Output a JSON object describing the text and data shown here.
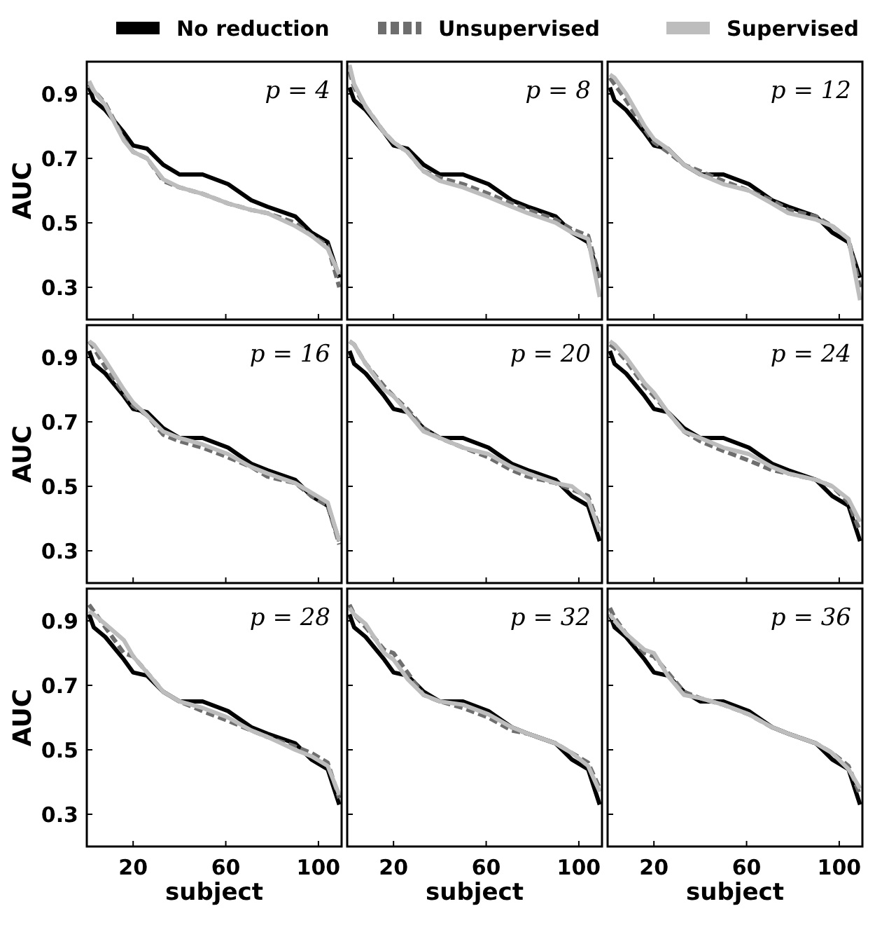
{
  "chart_data": [
    {
      "type": "line",
      "title": "p = 4",
      "ylabel": "AUC",
      "x": [
        1,
        3,
        8,
        16,
        20,
        26,
        33,
        40,
        50,
        61,
        71,
        78,
        90,
        97,
        104,
        109
      ],
      "xlim": [
        0,
        110
      ],
      "ylim": [
        0.2,
        1.0
      ],
      "xticks": [
        20,
        60,
        100
      ],
      "yticks": [
        0.3,
        0.5,
        0.7,
        0.9
      ],
      "tick_labels": "y",
      "legend": "top",
      "series": [
        {
          "name": "No reduction",
          "color": "#000000",
          "line_style": "solid",
          "values": [
            0.92,
            0.88,
            0.85,
            0.78,
            0.74,
            0.73,
            0.68,
            0.65,
            0.65,
            0.62,
            0.57,
            0.55,
            0.52,
            0.47,
            0.44,
            0.33
          ]
        },
        {
          "name": "Unsupervised",
          "color": "#6e6e6e",
          "line_style": "dashed",
          "values": [
            0.93,
            0.91,
            0.87,
            0.76,
            0.72,
            0.7,
            0.63,
            0.61,
            0.59,
            0.56,
            0.54,
            0.53,
            0.5,
            0.46,
            0.43,
            0.3
          ]
        },
        {
          "name": "Supervised",
          "color": "#bdbdbd",
          "line_style": "solid",
          "values": [
            0.94,
            0.91,
            0.865,
            0.755,
            0.72,
            0.7,
            0.635,
            0.61,
            0.59,
            0.56,
            0.54,
            0.53,
            0.49,
            0.46,
            0.42,
            0.34
          ]
        }
      ]
    },
    {
      "type": "line",
      "title": "p = 8",
      "x": [
        1,
        3,
        8,
        16,
        20,
        26,
        33,
        40,
        50,
        61,
        71,
        78,
        90,
        97,
        104,
        109
      ],
      "xlim": [
        0,
        110
      ],
      "ylim": [
        0.2,
        1.0
      ],
      "xticks": [
        20,
        60,
        100
      ],
      "yticks": [
        0.3,
        0.5,
        0.7,
        0.9
      ],
      "tick_labels": false,
      "series": [
        {
          "color": "#000000",
          "line_style": "solid",
          "values": [
            0.92,
            0.88,
            0.85,
            0.78,
            0.74,
            0.73,
            0.68,
            0.65,
            0.65,
            0.62,
            0.57,
            0.55,
            0.52,
            0.47,
            0.44,
            0.33
          ]
        },
        {
          "color": "#6e6e6e",
          "line_style": "dashed",
          "values": [
            0.97,
            0.92,
            0.86,
            0.78,
            0.75,
            0.72,
            0.66,
            0.64,
            0.62,
            0.59,
            0.56,
            0.54,
            0.51,
            0.48,
            0.46,
            0.33
          ]
        },
        {
          "color": "#bdbdbd",
          "line_style": "solid",
          "values": [
            0.99,
            0.93,
            0.86,
            0.78,
            0.75,
            0.72,
            0.66,
            0.63,
            0.61,
            0.58,
            0.55,
            0.53,
            0.5,
            0.47,
            0.45,
            0.27
          ]
        }
      ]
    },
    {
      "type": "line",
      "title": "p = 12",
      "x": [
        1,
        3,
        8,
        16,
        20,
        26,
        33,
        40,
        50,
        61,
        71,
        78,
        90,
        97,
        104,
        109
      ],
      "xlim": [
        0,
        110
      ],
      "ylim": [
        0.2,
        1.0
      ],
      "xticks": [
        20,
        60,
        100
      ],
      "yticks": [
        0.3,
        0.5,
        0.7,
        0.9
      ],
      "tick_labels": false,
      "series": [
        {
          "color": "#000000",
          "line_style": "solid",
          "values": [
            0.92,
            0.88,
            0.85,
            0.78,
            0.74,
            0.73,
            0.68,
            0.65,
            0.65,
            0.62,
            0.57,
            0.55,
            0.52,
            0.47,
            0.44,
            0.33
          ]
        },
        {
          "color": "#6e6e6e",
          "line_style": "dashed",
          "values": [
            0.95,
            0.93,
            0.88,
            0.79,
            0.75,
            0.72,
            0.68,
            0.66,
            0.63,
            0.6,
            0.57,
            0.54,
            0.52,
            0.49,
            0.45,
            0.3
          ]
        },
        {
          "color": "#bdbdbd",
          "line_style": "solid",
          "values": [
            0.96,
            0.95,
            0.9,
            0.8,
            0.76,
            0.73,
            0.68,
            0.65,
            0.62,
            0.6,
            0.56,
            0.53,
            0.51,
            0.49,
            0.45,
            0.26
          ]
        }
      ]
    },
    {
      "type": "line",
      "title": "p = 16",
      "ylabel": "AUC",
      "x": [
        1,
        3,
        8,
        16,
        20,
        26,
        33,
        40,
        50,
        61,
        71,
        78,
        90,
        97,
        104,
        109
      ],
      "xlim": [
        0,
        110
      ],
      "ylim": [
        0.2,
        1.0
      ],
      "xticks": [
        20,
        60,
        100
      ],
      "yticks": [
        0.3,
        0.5,
        0.7,
        0.9
      ],
      "tick_labels": "y",
      "series": [
        {
          "color": "#000000",
          "line_style": "solid",
          "values": [
            0.92,
            0.88,
            0.85,
            0.78,
            0.74,
            0.73,
            0.68,
            0.65,
            0.65,
            0.62,
            0.57,
            0.55,
            0.52,
            0.47,
            0.44,
            0.33
          ]
        },
        {
          "color": "#6e6e6e",
          "line_style": "dashed",
          "values": [
            0.95,
            0.93,
            0.87,
            0.79,
            0.75,
            0.72,
            0.66,
            0.64,
            0.62,
            0.59,
            0.56,
            0.53,
            0.51,
            0.47,
            0.44,
            0.32
          ]
        },
        {
          "color": "#bdbdbd",
          "line_style": "solid",
          "values": [
            0.95,
            0.94,
            0.89,
            0.8,
            0.76,
            0.72,
            0.67,
            0.65,
            0.63,
            0.6,
            0.56,
            0.54,
            0.51,
            0.48,
            0.45,
            0.33
          ]
        }
      ]
    },
    {
      "type": "line",
      "title": "p = 20",
      "x": [
        1,
        3,
        8,
        16,
        20,
        26,
        33,
        40,
        50,
        61,
        71,
        78,
        90,
        97,
        104,
        109
      ],
      "xlim": [
        0,
        110
      ],
      "ylim": [
        0.2,
        1.0
      ],
      "xticks": [
        20,
        60,
        100
      ],
      "yticks": [
        0.3,
        0.5,
        0.7,
        0.9
      ],
      "tick_labels": false,
      "series": [
        {
          "color": "#000000",
          "line_style": "solid",
          "values": [
            0.92,
            0.88,
            0.85,
            0.78,
            0.74,
            0.73,
            0.68,
            0.65,
            0.65,
            0.62,
            0.57,
            0.55,
            0.52,
            0.47,
            0.44,
            0.33
          ]
        },
        {
          "color": "#6e6e6e",
          "line_style": "dashed",
          "values": [
            0.95,
            0.94,
            0.88,
            0.81,
            0.78,
            0.74,
            0.68,
            0.65,
            0.62,
            0.59,
            0.55,
            0.53,
            0.51,
            0.49,
            0.47,
            0.37
          ]
        },
        {
          "color": "#bdbdbd",
          "line_style": "solid",
          "values": [
            0.95,
            0.94,
            0.88,
            0.8,
            0.78,
            0.73,
            0.67,
            0.65,
            0.62,
            0.6,
            0.56,
            0.54,
            0.51,
            0.5,
            0.46,
            0.36
          ]
        }
      ]
    },
    {
      "type": "line",
      "title": "p = 24",
      "x": [
        1,
        3,
        8,
        16,
        20,
        26,
        33,
        40,
        50,
        61,
        71,
        78,
        90,
        97,
        104,
        109
      ],
      "xlim": [
        0,
        110
      ],
      "ylim": [
        0.2,
        1.0
      ],
      "xticks": [
        20,
        60,
        100
      ],
      "yticks": [
        0.3,
        0.5,
        0.7,
        0.9
      ],
      "tick_labels": false,
      "series": [
        {
          "color": "#000000",
          "line_style": "solid",
          "values": [
            0.92,
            0.88,
            0.85,
            0.78,
            0.74,
            0.73,
            0.68,
            0.65,
            0.65,
            0.62,
            0.57,
            0.55,
            0.52,
            0.47,
            0.44,
            0.33
          ]
        },
        {
          "color": "#6e6e6e",
          "line_style": "dashed",
          "values": [
            0.94,
            0.93,
            0.89,
            0.81,
            0.78,
            0.73,
            0.67,
            0.64,
            0.61,
            0.58,
            0.55,
            0.54,
            0.52,
            0.5,
            0.45,
            0.36
          ]
        },
        {
          "color": "#bdbdbd",
          "line_style": "solid",
          "values": [
            0.95,
            0.94,
            0.9,
            0.82,
            0.79,
            0.73,
            0.67,
            0.65,
            0.62,
            0.6,
            0.56,
            0.54,
            0.52,
            0.5,
            0.46,
            0.39
          ]
        }
      ]
    },
    {
      "type": "line",
      "title": "p = 28",
      "xlabel": "subject",
      "ylabel": "AUC",
      "x": [
        1,
        3,
        8,
        16,
        20,
        26,
        33,
        40,
        50,
        61,
        71,
        78,
        90,
        97,
        104,
        109
      ],
      "xlim": [
        0,
        110
      ],
      "ylim": [
        0.2,
        1.0
      ],
      "xticks": [
        20,
        60,
        100
      ],
      "yticks": [
        0.3,
        0.5,
        0.7,
        0.9
      ],
      "series": [
        {
          "color": "#000000",
          "line_style": "solid",
          "values": [
            0.92,
            0.88,
            0.85,
            0.78,
            0.74,
            0.73,
            0.68,
            0.65,
            0.65,
            0.62,
            0.57,
            0.55,
            0.52,
            0.47,
            0.44,
            0.33
          ]
        },
        {
          "color": "#6e6e6e",
          "line_style": "dashed",
          "values": [
            0.95,
            0.93,
            0.88,
            0.8,
            0.79,
            0.74,
            0.68,
            0.65,
            0.62,
            0.59,
            0.56,
            0.54,
            0.51,
            0.49,
            0.46,
            0.35
          ]
        },
        {
          "color": "#bdbdbd",
          "line_style": "solid",
          "values": [
            0.93,
            0.92,
            0.89,
            0.84,
            0.79,
            0.74,
            0.68,
            0.65,
            0.63,
            0.6,
            0.56,
            0.54,
            0.5,
            0.48,
            0.45,
            0.36
          ]
        }
      ]
    },
    {
      "type": "line",
      "title": "p = 32",
      "xlabel": "subject",
      "x": [
        1,
        3,
        8,
        16,
        20,
        26,
        33,
        40,
        50,
        61,
        71,
        78,
        90,
        97,
        104,
        109
      ],
      "xlim": [
        0,
        110
      ],
      "ylim": [
        0.2,
        1.0
      ],
      "xticks": [
        20,
        60,
        100
      ],
      "yticks": [
        0.3,
        0.5,
        0.7,
        0.9
      ],
      "tick_labels": "x",
      "series": [
        {
          "color": "#000000",
          "line_style": "solid",
          "values": [
            0.92,
            0.88,
            0.85,
            0.78,
            0.74,
            0.73,
            0.68,
            0.65,
            0.65,
            0.62,
            0.57,
            0.55,
            0.52,
            0.47,
            0.44,
            0.33
          ]
        },
        {
          "color": "#6e6e6e",
          "line_style": "dashed",
          "values": [
            0.95,
            0.92,
            0.88,
            0.81,
            0.8,
            0.74,
            0.67,
            0.65,
            0.63,
            0.6,
            0.56,
            0.55,
            0.52,
            0.49,
            0.46,
            0.38
          ]
        },
        {
          "color": "#bdbdbd",
          "line_style": "solid",
          "values": [
            0.94,
            0.92,
            0.89,
            0.8,
            0.78,
            0.72,
            0.67,
            0.65,
            0.64,
            0.61,
            0.57,
            0.55,
            0.52,
            0.49,
            0.45,
            0.37
          ]
        }
      ]
    },
    {
      "type": "line",
      "title": "p = 36",
      "xlabel": "subject",
      "x": [
        1,
        3,
        8,
        16,
        20,
        26,
        33,
        40,
        50,
        61,
        71,
        78,
        90,
        97,
        104,
        109
      ],
      "xlim": [
        0,
        110
      ],
      "ylim": [
        0.2,
        1.0
      ],
      "xticks": [
        20,
        60,
        100
      ],
      "yticks": [
        0.3,
        0.5,
        0.7,
        0.9
      ],
      "tick_labels": "x",
      "series": [
        {
          "color": "#000000",
          "line_style": "solid",
          "values": [
            0.92,
            0.88,
            0.85,
            0.78,
            0.74,
            0.73,
            0.68,
            0.65,
            0.65,
            0.62,
            0.57,
            0.55,
            0.52,
            0.47,
            0.44,
            0.33
          ]
        },
        {
          "color": "#6e6e6e",
          "line_style": "dashed",
          "values": [
            0.94,
            0.91,
            0.86,
            0.8,
            0.79,
            0.74,
            0.68,
            0.66,
            0.64,
            0.61,
            0.57,
            0.55,
            0.52,
            0.49,
            0.45,
            0.36
          ]
        },
        {
          "color": "#bdbdbd",
          "line_style": "solid",
          "values": [
            0.92,
            0.9,
            0.86,
            0.81,
            0.8,
            0.73,
            0.67,
            0.66,
            0.64,
            0.61,
            0.57,
            0.55,
            0.52,
            0.49,
            0.44,
            0.38
          ]
        }
      ]
    }
  ]
}
